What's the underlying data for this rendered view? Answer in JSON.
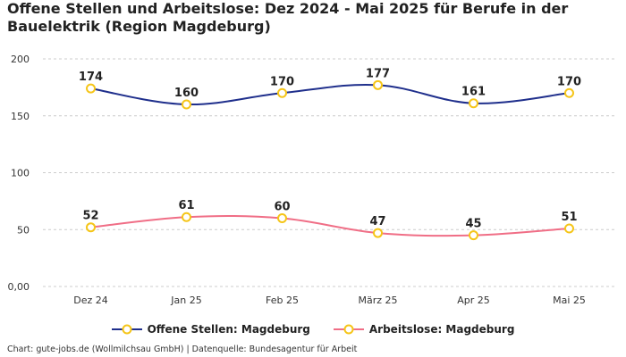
{
  "title": "Offene Stellen und Arbeitslose: Dez 2024 - Mai 2025 für Berufe in der Bauelektrik (Region Magdeburg)",
  "footer": "Chart: gute-jobs.de (Wollmilchsau GmbH) | Datenquelle: Bundesagentur für Arbeit",
  "colors": {
    "series1": "#1f2f8c",
    "series2": "#f06e86",
    "marker_stroke": "#f5c518",
    "grid": "#cccccc"
  },
  "chart_data": {
    "type": "line",
    "categories": [
      "Dez 24",
      "Jan 25",
      "Feb 25",
      "März 25",
      "Apr 25",
      "Mai 25"
    ],
    "series": [
      {
        "name": "Offene Stellen: Magdeburg",
        "values": [
          174,
          160,
          170,
          177,
          161,
          170
        ]
      },
      {
        "name": "Arbeitslose: Magdeburg",
        "values": [
          52,
          61,
          60,
          47,
          45,
          51
        ]
      }
    ],
    "ylim": [
      0,
      200
    ],
    "yticks": [
      0,
      50,
      100,
      150,
      200
    ],
    "ytick_labels": [
      "0,00",
      "50",
      "100",
      "150",
      "200"
    ],
    "grid": true,
    "legend": "bottom-center"
  }
}
